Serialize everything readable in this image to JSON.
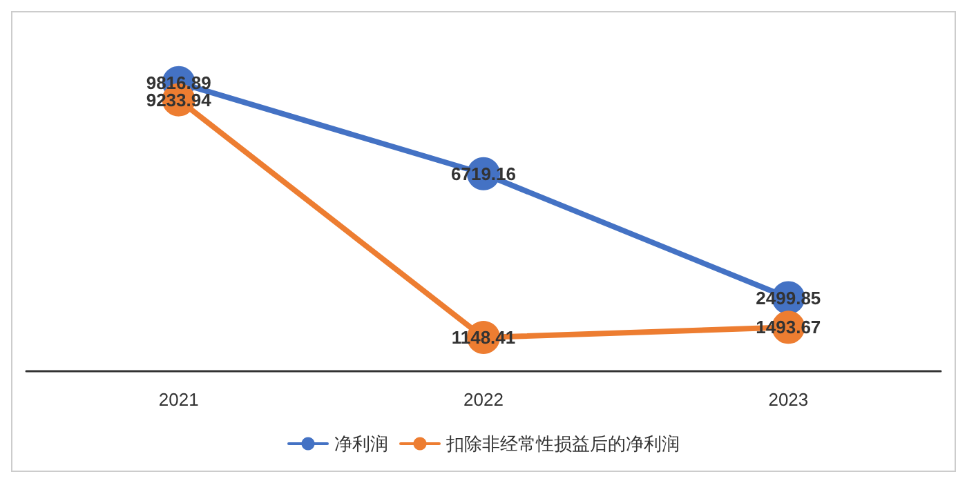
{
  "chart_data": {
    "type": "line",
    "categories": [
      "2021",
      "2022",
      "2023"
    ],
    "series": [
      {
        "name": "净利润",
        "color": "#4472c4",
        "values": [
          9816.89,
          6719.16,
          2499.85
        ]
      },
      {
        "name": "扣除非经常性损益后的净利润",
        "color": "#ed7d31",
        "values": [
          9233.94,
          1148.41,
          1493.67
        ]
      }
    ],
    "tick_labels": "x",
    "data_labels": true,
    "legend": "bottom",
    "marker": "circle",
    "line_style": "solid",
    "grid": false
  }
}
